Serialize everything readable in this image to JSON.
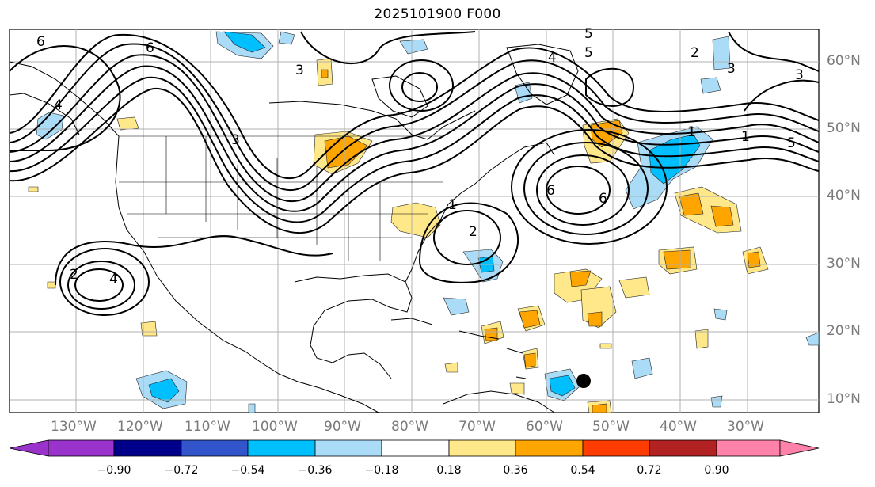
{
  "title": "2025101900 F000",
  "lat_labels": [
    "60°N",
    "50°N",
    "40°N",
    "30°N",
    "20°N",
    "10°N"
  ],
  "lon_labels": [
    "130°W",
    "120°W",
    "110°W",
    "100°W",
    "90°W",
    "80°W",
    "70°W",
    "60°W",
    "50°W",
    "40°W",
    "30°W"
  ],
  "colorbar": {
    "ticks": [
      "−0.90",
      "−0.72",
      "−0.54",
      "−0.36",
      "−0.18",
      "0.18",
      "0.36",
      "0.54",
      "0.72",
      "0.90"
    ],
    "colors": [
      "#9933cc",
      "#00008b",
      "#3355cc",
      "#00bfff",
      "#aadcf8",
      "#ffffff",
      "#ffe88a",
      "#ffa500",
      "#ff3d00",
      "#b22222",
      "#ff82ab"
    ]
  },
  "contour_labels": [
    "6",
    "6",
    "4",
    "4",
    "3",
    "3",
    "2",
    "5",
    "5",
    "3",
    "2",
    "1",
    "1",
    "2",
    "4",
    "3",
    "1",
    "6",
    "6",
    "5"
  ],
  "colors": {
    "contour": "#000000",
    "coast": "#000000",
    "grid": "#b0b0b0",
    "gridlabel": "#7a7a7a"
  }
}
